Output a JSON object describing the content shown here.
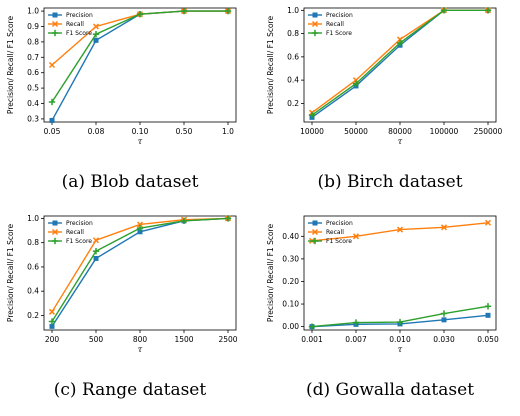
{
  "figure": {
    "legend_labels": [
      "Precision",
      "Recall",
      "F1 Score"
    ],
    "ylabel": "Precision/ Recall/ F1 Score",
    "xlabel": "τ",
    "colors": {
      "Precision": "#1f77b4",
      "Recall": "#ff7f0e",
      "F1 Score": "#2ca02c"
    },
    "markers": {
      "Precision": "square",
      "Recall": "x",
      "F1 Score": "plus"
    },
    "legend_position": "top-left",
    "grid": false
  },
  "chart_data": [
    {
      "type": "line",
      "caption": "(a) Blob dataset",
      "categories": [
        "0.05",
        "0.08",
        "0.10",
        "0.50",
        "1.0"
      ],
      "series": [
        {
          "name": "Precision",
          "values": [
            0.29,
            0.81,
            0.98,
            1.0,
            1.0
          ]
        },
        {
          "name": "Recall",
          "values": [
            0.65,
            0.9,
            0.98,
            1.0,
            1.0
          ]
        },
        {
          "name": "F1 Score",
          "values": [
            0.41,
            0.85,
            0.98,
            1.0,
            1.0
          ]
        }
      ],
      "ylim": [
        0.28,
        1.02
      ],
      "yticks": [
        0.3,
        0.4,
        0.5,
        0.6,
        0.7,
        0.8,
        0.9,
        1.0
      ],
      "ytick_labels": [
        "0.3",
        "0.4",
        "0.5",
        "0.6",
        "0.7",
        "0.8",
        "0.9",
        "1.0"
      ]
    },
    {
      "type": "line",
      "caption": "(b) Birch dataset",
      "categories": [
        "10000",
        "50000",
        "80000",
        "100000",
        "250000"
      ],
      "series": [
        {
          "name": "Precision",
          "values": [
            0.08,
            0.35,
            0.7,
            1.0,
            1.0
          ]
        },
        {
          "name": "Recall",
          "values": [
            0.12,
            0.4,
            0.75,
            1.0,
            1.0
          ]
        },
        {
          "name": "F1 Score",
          "values": [
            0.1,
            0.37,
            0.72,
            1.0,
            1.0
          ]
        }
      ],
      "ylim": [
        0.04,
        1.02
      ],
      "yticks": [
        0.2,
        0.4,
        0.6,
        0.8,
        1.0
      ],
      "ytick_labels": [
        "0.2",
        "0.4",
        "0.6",
        "0.8",
        "1.0"
      ]
    },
    {
      "type": "line",
      "caption": "(c) Range dataset",
      "categories": [
        "200",
        "500",
        "800",
        "1500",
        "2500"
      ],
      "series": [
        {
          "name": "Precision",
          "values": [
            0.11,
            0.67,
            0.89,
            0.98,
            1.0
          ]
        },
        {
          "name": "Recall",
          "values": [
            0.23,
            0.82,
            0.95,
            0.99,
            1.0
          ]
        },
        {
          "name": "F1 Score",
          "values": [
            0.15,
            0.73,
            0.92,
            0.98,
            1.0
          ]
        }
      ],
      "ylim": [
        0.08,
        1.02
      ],
      "yticks": [
        0.2,
        0.4,
        0.6,
        0.8,
        1.0
      ],
      "ytick_labels": [
        "0.2",
        "0.4",
        "0.6",
        "0.8",
        "1.0"
      ]
    },
    {
      "type": "line",
      "caption": "(d) Gowalla dataset",
      "categories": [
        "0.001",
        "0.007",
        "0.010",
        "0.030",
        "0.050"
      ],
      "series": [
        {
          "name": "Precision",
          "values": [
            0.0,
            0.01,
            0.012,
            0.03,
            0.05
          ]
        },
        {
          "name": "Recall",
          "values": [
            0.38,
            0.4,
            0.43,
            0.44,
            0.46
          ]
        },
        {
          "name": "F1 Score",
          "values": [
            0.0,
            0.018,
            0.02,
            0.058,
            0.09
          ]
        }
      ],
      "ylim": [
        -0.015,
        0.49
      ],
      "yticks": [
        0.0,
        0.1,
        0.2,
        0.3,
        0.4
      ],
      "ytick_labels": [
        "0.00",
        "0.10",
        "0.20",
        "0.30",
        "0.40"
      ]
    }
  ]
}
